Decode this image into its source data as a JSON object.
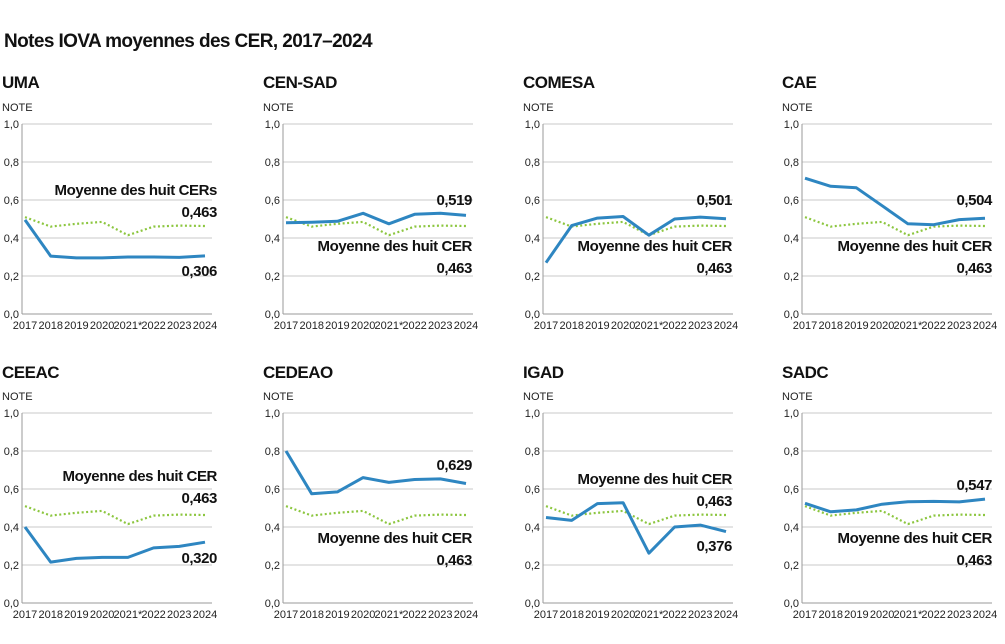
{
  "title": "Notes IOVA moyennes des CER, 2017–2024",
  "colors": {
    "rec": "#2e86c1",
    "average": "#8cc63f",
    "grid": "#c8c8c8"
  },
  "chart_data": [
    {
      "type": "line",
      "title": "UMA",
      "ylabel": "NOTE",
      "x": [
        "2017",
        "2018",
        "2019",
        "2020",
        "2021*",
        "2022",
        "2023",
        "2024"
      ],
      "yticks": [
        "0,0",
        "0,2",
        "0,4",
        "0,6",
        "0,8",
        "1,0"
      ],
      "ylim": [
        0,
        1
      ],
      "series": [
        {
          "values": [
            0.495,
            0.305,
            0.295,
            0.295,
            0.3,
            0.3,
            0.298,
            0.306
          ]
        },
        {
          "name": "Moyenne des huit CERs",
          "values": [
            0.51,
            0.46,
            0.475,
            0.485,
            0.415,
            0.46,
            0.465,
            0.463
          ]
        }
      ],
      "annotations": {
        "average_label": "Moyenne des huit CERs",
        "average_value": "0,463",
        "value": "0,306"
      }
    },
    {
      "type": "line",
      "title": "CEN-SAD",
      "ylabel": "NOTE",
      "x": [
        "2017",
        "2018",
        "2019",
        "2020",
        "2021*",
        "2022",
        "2023",
        "2024"
      ],
      "yticks": [
        "0,0",
        "0,2",
        "0,4",
        "0,6",
        "0,8",
        "1,0"
      ],
      "ylim": [
        0,
        1
      ],
      "series": [
        {
          "values": [
            0.48,
            0.483,
            0.488,
            0.53,
            0.475,
            0.525,
            0.53,
            0.519
          ]
        },
        {
          "name": "Moyenne des huit CER",
          "values": [
            0.51,
            0.46,
            0.475,
            0.485,
            0.415,
            0.46,
            0.465,
            0.463
          ]
        }
      ],
      "annotations": {
        "average_label": "Moyenne des huit CER",
        "average_value": "0,463",
        "value": "0,519"
      }
    },
    {
      "type": "line",
      "title": "COMESA",
      "ylabel": "NOTE",
      "x": [
        "2017",
        "2018",
        "2019",
        "2020",
        "2021*",
        "2022",
        "2023",
        "2024"
      ],
      "yticks": [
        "0,0",
        "0,2",
        "0,4",
        "0,6",
        "0,8",
        "1,0"
      ],
      "ylim": [
        0,
        1
      ],
      "series": [
        {
          "values": [
            0.27,
            0.465,
            0.505,
            0.513,
            0.415,
            0.5,
            0.51,
            0.501
          ]
        },
        {
          "name": "Moyenne des huit CER",
          "values": [
            0.51,
            0.46,
            0.475,
            0.485,
            0.415,
            0.46,
            0.465,
            0.463
          ]
        }
      ],
      "annotations": {
        "average_label": "Moyenne des huit CER",
        "average_value": "0,463",
        "value": "0,501"
      }
    },
    {
      "type": "line",
      "title": "CAE",
      "ylabel": "NOTE",
      "x": [
        "2017",
        "2018",
        "2019",
        "2020",
        "2021*",
        "2022",
        "2023",
        "2024"
      ],
      "yticks": [
        "0,0",
        "0,2",
        "0,4",
        "0,6",
        "0,8",
        "1,0"
      ],
      "ylim": [
        0,
        1
      ],
      "series": [
        {
          "values": [
            0.715,
            0.672,
            0.664,
            0.57,
            0.475,
            0.47,
            0.497,
            0.504
          ]
        },
        {
          "name": "Moyenne des huit CER",
          "values": [
            0.51,
            0.46,
            0.475,
            0.485,
            0.415,
            0.46,
            0.465,
            0.463
          ]
        }
      ],
      "annotations": {
        "average_label": "Moyenne des huit CER",
        "average_value": "0,463",
        "value": "0,504"
      }
    },
    {
      "type": "line",
      "title": "CEEAC",
      "ylabel": "NOTE",
      "x": [
        "2017",
        "2018",
        "2019",
        "2020",
        "2021*",
        "2022",
        "2023",
        "2024"
      ],
      "yticks": [
        "0,0",
        "0,2",
        "0,4",
        "0,6",
        "0,8",
        "1,0"
      ],
      "ylim": [
        0,
        1
      ],
      "series": [
        {
          "values": [
            0.4,
            0.215,
            0.235,
            0.24,
            0.24,
            0.29,
            0.298,
            0.32
          ]
        },
        {
          "name": "Moyenne des huit CER",
          "values": [
            0.51,
            0.46,
            0.475,
            0.485,
            0.415,
            0.46,
            0.465,
            0.463
          ]
        }
      ],
      "annotations": {
        "average_label": "Moyenne des huit CER",
        "average_value": "0,463",
        "value": "0,320"
      }
    },
    {
      "type": "line",
      "title": "CEDEAO",
      "ylabel": "NOTE",
      "x": [
        "2017",
        "2018",
        "2019",
        "2020",
        "2021*",
        "2022",
        "2023",
        "2024"
      ],
      "yticks": [
        "0,0",
        "0,2",
        "0,4",
        "0,6",
        "0,8",
        "1,0"
      ],
      "ylim": [
        0,
        1
      ],
      "series": [
        {
          "values": [
            0.8,
            0.575,
            0.585,
            0.66,
            0.635,
            0.65,
            0.653,
            0.629
          ]
        },
        {
          "name": "Moyenne des huit CER",
          "values": [
            0.51,
            0.46,
            0.475,
            0.485,
            0.415,
            0.46,
            0.465,
            0.463
          ]
        }
      ],
      "annotations": {
        "average_label": "Moyenne des huit CER",
        "average_value": "0,463",
        "value": "0,629"
      }
    },
    {
      "type": "line",
      "title": "IGAD",
      "ylabel": "NOTE",
      "x": [
        "2017",
        "2018",
        "2019",
        "2020",
        "2021*",
        "2022",
        "2023",
        "2024"
      ],
      "yticks": [
        "0,0",
        "0,2",
        "0,4",
        "0,6",
        "0,8",
        "1,0"
      ],
      "ylim": [
        0,
        1
      ],
      "series": [
        {
          "values": [
            0.45,
            0.435,
            0.523,
            0.528,
            0.262,
            0.4,
            0.41,
            0.376
          ]
        },
        {
          "name": "Moyenne des huit CER",
          "values": [
            0.51,
            0.46,
            0.475,
            0.485,
            0.415,
            0.46,
            0.465,
            0.463
          ]
        }
      ],
      "annotations": {
        "average_label": "Moyenne des huit CER",
        "average_value": "0,463",
        "value": "0,376"
      }
    },
    {
      "type": "line",
      "title": "SADC",
      "ylabel": "NOTE",
      "x": [
        "2017",
        "2018",
        "2019",
        "2020",
        "2021*",
        "2022",
        "2023",
        "2024"
      ],
      "yticks": [
        "0,0",
        "0,2",
        "0,4",
        "0,6",
        "0,8",
        "1,0"
      ],
      "ylim": [
        0,
        1
      ],
      "series": [
        {
          "values": [
            0.525,
            0.48,
            0.49,
            0.52,
            0.533,
            0.535,
            0.532,
            0.547
          ]
        },
        {
          "name": "Moyenne des huit CER",
          "values": [
            0.51,
            0.46,
            0.475,
            0.485,
            0.415,
            0.46,
            0.465,
            0.463
          ]
        }
      ],
      "annotations": {
        "average_label": "Moyenne des huit CER",
        "average_value": "0,463",
        "value": "0,547"
      }
    }
  ]
}
